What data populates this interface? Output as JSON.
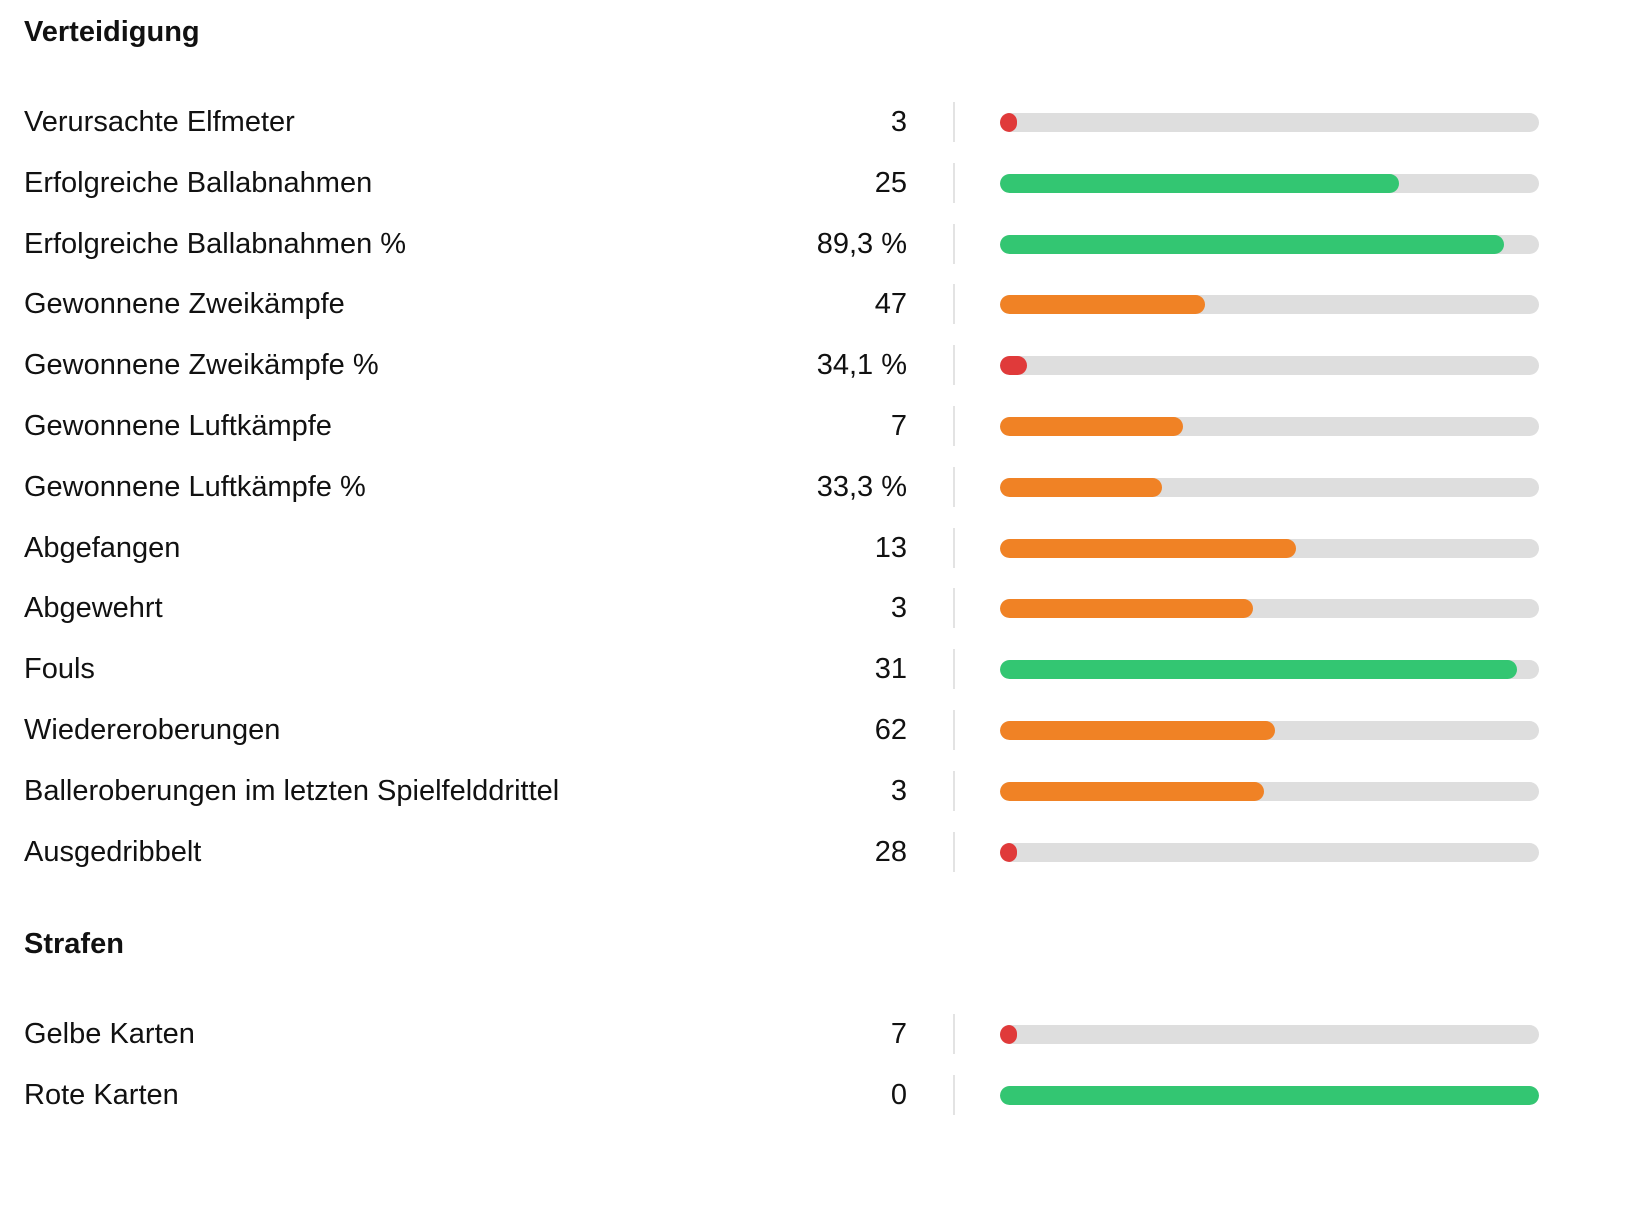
{
  "colors": {
    "good": "#33c672",
    "average": "#f08225",
    "poor": "#e03a3a",
    "track": "#dedede"
  },
  "sections": [
    {
      "title": "Verteidigung",
      "rows": [
        {
          "label": "Verursachte Elfmeter",
          "value": "3",
          "fill": 0.01,
          "status": "poor"
        },
        {
          "label": "Erfolgreiche Ballabnahmen",
          "value": "25",
          "fill": 0.74,
          "status": "good"
        },
        {
          "label": "Erfolgreiche Ballabnahmen %",
          "value": "89,3 %",
          "fill": 0.935,
          "status": "good"
        },
        {
          "label": "Gewonnene Zweikämpfe",
          "value": "47",
          "fill": 0.38,
          "status": "average"
        },
        {
          "label": "Gewonnene Zweikämpfe %",
          "value": "34,1 %",
          "fill": 0.05,
          "status": "poor"
        },
        {
          "label": "Gewonnene Luftkämpfe",
          "value": "7",
          "fill": 0.34,
          "status": "average"
        },
        {
          "label": "Gewonnene Luftkämpfe %",
          "value": "33,3 %",
          "fill": 0.3,
          "status": "average"
        },
        {
          "label": "Abgefangen",
          "value": "13",
          "fill": 0.55,
          "status": "average"
        },
        {
          "label": "Abgewehrt",
          "value": "3",
          "fill": 0.47,
          "status": "average"
        },
        {
          "label": "Fouls",
          "value": "31",
          "fill": 0.96,
          "status": "good"
        },
        {
          "label": "Wiedereroberungen",
          "value": "62",
          "fill": 0.51,
          "status": "average"
        },
        {
          "label": "Balleroberungen im letzten Spielfelddrittel",
          "value": "3",
          "fill": 0.49,
          "status": "average"
        },
        {
          "label": "Ausgedribbelt",
          "value": "28",
          "fill": 0.01,
          "status": "poor"
        }
      ]
    },
    {
      "title": "Strafen",
      "rows": [
        {
          "label": "Gelbe Karten",
          "value": "7",
          "fill": 0.01,
          "status": "poor"
        },
        {
          "label": "Rote Karten",
          "value": "0",
          "fill": 1.0,
          "status": "good"
        }
      ]
    }
  ]
}
